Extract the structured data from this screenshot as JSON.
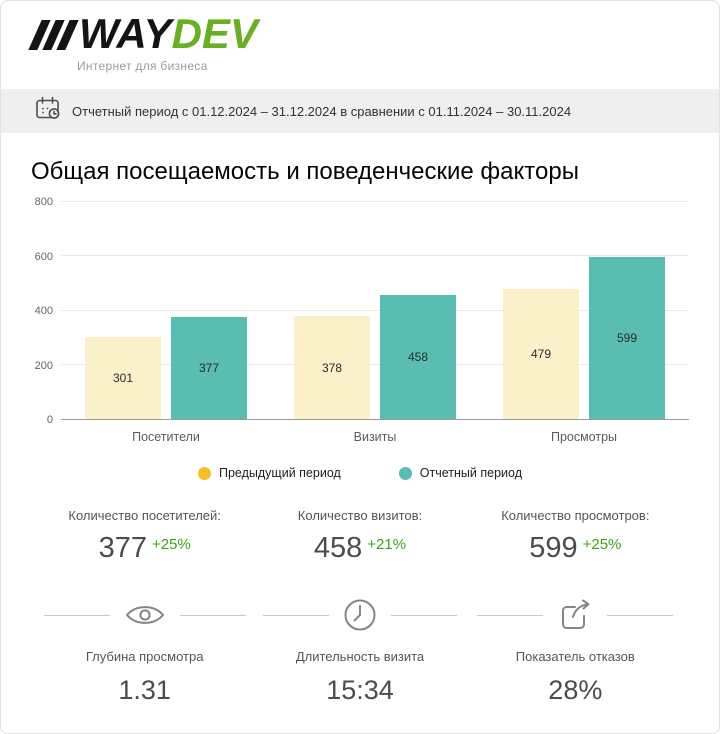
{
  "header": {
    "logo_way": "WAY",
    "logo_dev": "DEV",
    "tagline": "Интернет для бизнеса"
  },
  "period_bar": {
    "text": "Отчетный период с 01.12.2024 – 31.12.2024 в сравнении с 01.11.2024 – 30.11.2024"
  },
  "page_title": "Общая посещаемость и поведенческие факторы",
  "chart_data": {
    "type": "bar",
    "categories": [
      "Посетители",
      "Визиты",
      "Просмотры"
    ],
    "series": [
      {
        "name": "Предыдущий период",
        "color": "#faf0c9",
        "values": [
          301,
          378,
          479
        ]
      },
      {
        "name": "Отчетный период",
        "color": "#59bdb2",
        "values": [
          377,
          458,
          599
        ]
      }
    ],
    "ylim": [
      0,
      800
    ],
    "yticks": [
      0,
      200,
      400,
      600,
      800
    ],
    "grid": "horizontal",
    "legend_position": "bottom",
    "legend_colors": {
      "previous": "#f3be26",
      "current": "#59bdb2"
    }
  },
  "stats": [
    {
      "label": "Количество посетителей:",
      "value": "377",
      "delta": "+25%"
    },
    {
      "label": "Количество визитов:",
      "value": "458",
      "delta": "+21%"
    },
    {
      "label": "Количество просмотров:",
      "value": "599",
      "delta": "+25%"
    }
  ],
  "metrics": [
    {
      "icon": "eye-icon",
      "label": "Глубина просмотра",
      "value": "1.31"
    },
    {
      "icon": "clock-icon",
      "label": "Длительность визита",
      "value": "15:34"
    },
    {
      "icon": "bounce-icon",
      "label": "Показатель отказов",
      "value": "28%"
    }
  ]
}
